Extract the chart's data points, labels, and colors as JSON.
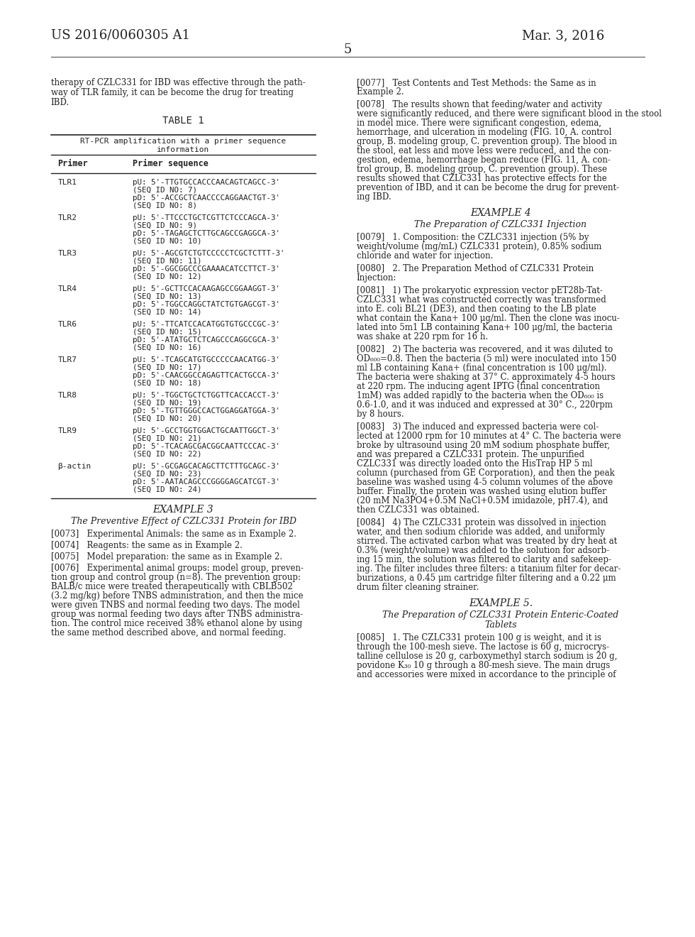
{
  "bg_color": "#ffffff",
  "header_left": "US 2016/0060305 A1",
  "header_right": "Mar. 3, 2016",
  "page_num": "5",
  "left_col": {
    "intro_text": "therapy of CZLC331 for IBD was effective through the path-\nway of TLR family, it can be become the drug for treating\nIBD.",
    "table_title": "TABLE 1",
    "table_subtitle": "RT-PCR amplification with a primer sequence\ninformation",
    "col1_header": "Primer",
    "col2_header": "Primer sequence",
    "rows": [
      {
        "primer": "TLR1",
        "seq": "pU: 5'-TTGTGCCACCCAACAGTCAGCC-3'\n(SEQ ID NO: 7)\npD: 5'-ACCGCTCAACCCCAGGAACTGT-3'\n(SEQ ID NO: 8)"
      },
      {
        "primer": "TLR2",
        "seq": "pU: 5'-TTCCCTGCTCGTTCTCCCAGCA-3'\n(SEQ ID NO: 9)\npD: 5'-TAGAGCTCTTGCAGCCGAGGCA-3'\n(SEQ ID NO: 10)"
      },
      {
        "primer": "TLR3",
        "seq": "pU: 5'-AGCGTCTGTCCCCCTCGCTCTTT-3'\n(SEQ ID NO: 11)\npD: 5'-GGCGGCCCGAAAACATCCTTCT-3'\n(SEQ ID NO: 12)"
      },
      {
        "primer": "TLR4",
        "seq": "pU: 5'-GCTTCCACAAGAGCCGGAAGGT-3'\n(SEQ ID NO: 13)\npD: 5'-TGGCCAGGCTATCTGTGAGCGT-3'\n(SEQ ID NO: 14)"
      },
      {
        "primer": "TLR6",
        "seq": "pU: 5'-TTCATCCACATGGTGTGCCCGC-3'\n(SEQ ID NO: 15)\npD: 5'-ATATGCTCTCAGCCCAGGCGCA-3'\n(SEQ ID NO: 16)"
      },
      {
        "primer": "TLR7",
        "seq": "pU: 5'-TCAGCATGTGCCCCCAACATGG-3'\n(SEQ ID NO: 17)\npD: 5'-CAACGGCCAGAGTTCACTGCCA-3'\n(SEQ ID NO: 18)"
      },
      {
        "primer": "TLR8",
        "seq": "pU: 5'-TGGCTGCTCTGGTTCACCACCT-3'\n(SEQ ID NO: 19)\npD: 5'-TGTTGGGCCACTGGAGGATGGA-3'\n(SEQ ID NO: 20)"
      },
      {
        "primer": "TLR9",
        "seq": "pU: 5'-GCCTGGTGGACTGCAATTGGCT-3'\n(SEQ ID NO: 21)\npD: 5'-TCACAGCGACGGCAATTCCCAC-3'\n(SEQ ID NO: 22)"
      },
      {
        "primer": "β-actin",
        "seq": "pU: 5'-GCGAGCACAGCTTCTTTGCAGC-3'\n(SEQ ID NO: 23)\npD: 5'-AATACAGCCCGGGGAGCATCGT-3'\n(SEQ ID NO: 24)"
      }
    ],
    "example3_title": "EXAMPLE 3",
    "example3_subtitle": "The Preventive Effect of CZLC331 Protein for IBD",
    "para_0073": "[0073]   Experimental Animals: the same as in Example 2.",
    "para_0074": "[0074]   Reagents: the same as in Example 2.",
    "para_0075": "[0075]   Model preparation: the same as in Example 2.",
    "para_0076": "[0076]   Experimental animal groups: model group, preven-\ntion group and control group (n=8). The prevention group:\nBALB/c mice were treated therapeutically with CBLB502\n(3.2 mg/kg) before TNBS administration, and then the mice\nwere given TNBS and normal feeding two days. The model\ngroup was normal feeding two days after TNBS administra-\ntion. The control mice received 38% ethanol alone by using\nthe same method described above, and normal feeding."
  },
  "right_col": {
    "para_0077": "[0077]   Test Contents and Test Methods: the Same as in\nExample 2.",
    "para_0078": "[0078]   The results shown that feeding/water and activity\nwere significantly reduced, and there were significant blood in the stool\nin model mice. There were significant congestion, edema,\nhemorrhage, and ulceration in modeling (FIG. 10, A. control\ngroup, B. modeling group, C. prevention group). The blood in\nthe stool, eat less and move less were reduced, and the con-\ngestion, edema, hemorrhage began reduce (FIG. 11, A. con-\ntrol group, B. modeling group, C. prevention group). These\nresults showed that CZLC331 has protective effects for the\nprevention of IBD, and it can be become the drug for prevent-\ning IBD.",
    "example4_title": "EXAMPLE 4",
    "example4_subtitle": "The Preparation of CZLC331 Injection",
    "para_0079": "[0079]   1. Composition: the CZLC331 injection (5% by\nweight/volume (mg/mL) CZLC331 protein), 0.85% sodium\nchloride and water for injection.",
    "para_0080": "[0080]   2. The Preparation Method of CZLC331 Protein\nInjection:",
    "para_0081": "[0081]   1) The prokaryotic expression vector pET28b-Tat-\nCZLC331 what was constructed correctly was transformed\ninto E. coli BL21 (DE3), and then coating to the LB plate\nwhat contain the Kana+ 100 μg/ml. Then the clone was inocu-\nlated into 5m1 LB containing Kana+ 100 μg/ml, the bacteria\nwas shake at 220 rpm for 16 h.",
    "para_0082": "[0082]   2) The bacteria was recovered, and it was diluted to\nOD₆₀₀=0.8. Then the bacteria (5 ml) were inoculated into 150\nml LB containing Kana+ (final concentration is 100 μg/ml).\nThe bacteria were shaking at 37° C. approximately 4-5 hours\nat 220 rpm. The inducing agent IPTG (final concentration\n1mM) was added rapidly to the bacteria when the OD₆₀₀ is\n0.6-1.0, and it was induced and expressed at 30° C., 220rpm\nby 8 hours.",
    "para_0083": "[0083]   3) The induced and expressed bacteria were col-\nlected at 12000 rpm for 10 minutes at 4° C. The bacteria were\nbroke by ultrasound using 20 mM sodium phosphate buffer,\nand was prepared a CZLC331 protein. The unpurified\nCZLC331 was directly loaded onto the HisTrap HP 5 ml\ncolumn (purchased from GE Corporation), and then the peak\nbaseline was washed using 4-5 column volumes of the above\nbuffer. Finally, the protein was washed using elution buffer\n(20 mM Na3PO4+0.5M NaCl+0.5M imidazole, pH7.4), and\nthen CZLC331 was obtained.",
    "para_0084": "[0084]   4) The CZLC331 protein was dissolved in injection\nwater, and then sodium chloride was added, and uniformly\nstirred. The activated carbon what was treated by dry heat at\n0.3% (weight/volume) was added to the solution for adsorb-\ning 15 min, the solution was filtered to clarity and safekeep-\ning. The filter includes three filters: a titanium filter for decar-\nburizations, a 0.45 μm cartridge filter filtering and a 0.22 μm\ndrum filter cleaning strainer.",
    "example5_title": "EXAMPLE 5.",
    "example5_subtitle": "The Preparation of CZLC331 Protein Enteric-Coated\nTablets",
    "para_0085": "[0085]   1. The CZLC331 protein 100 g is weight, and it is\nthrough the 100-mesh sieve. The lactose is 60 g, microcrys-\ntalline cellulose is 20 g, carboxymethyl starch sodium is 20 g,\npovidone K₃₀ 10 g through a 80-mesh sieve. The main drugs\nand accessories were mixed in accordance to the principle of"
  }
}
